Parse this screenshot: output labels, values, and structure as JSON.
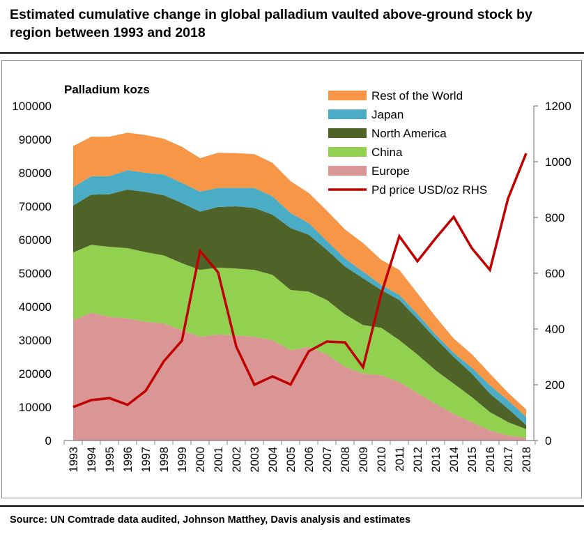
{
  "title": "Estimated cumulative change in global palladium vaulted above-ground stock by region between 1993 and 2018",
  "source": "Source: UN Comtrade data audited, Johnson Matthey, Davis analysis and estimates",
  "colors": {
    "rest_of_world": "#f79646",
    "japan": "#4bacc6",
    "north_america": "#4f6228",
    "china": "#92d050",
    "europe": "#d99694",
    "price": "#c00000"
  },
  "chart_data": {
    "type": "area",
    "title": "Palladium kozs",
    "ylabel": "Palladium kozs",
    "y2label": "Pd price USD/oz RHS",
    "ylim": [
      0,
      100000
    ],
    "y2lim": [
      0,
      1200
    ],
    "y_ticks": [
      "0",
      "10000",
      "20000",
      "30000",
      "40000",
      "50000",
      "60000",
      "70000",
      "80000",
      "90000",
      "100000"
    ],
    "y2_ticks": [
      "0",
      "200",
      "400",
      "600",
      "800",
      "1000",
      "1200"
    ],
    "categories": [
      "1993",
      "1994",
      "1995",
      "1996",
      "1997",
      "1998",
      "1999",
      "2000",
      "2001",
      "2002",
      "2003",
      "2004",
      "2005",
      "2006",
      "2007",
      "2008",
      "2009",
      "2010",
      "2011",
      "2012",
      "2013",
      "2014",
      "2015",
      "2016",
      "2017",
      "2018"
    ],
    "stacked_series": [
      {
        "key": "europe",
        "name": "Europe",
        "values": [
          36000,
          38200,
          37000,
          36500,
          35500,
          35000,
          33000,
          31000,
          31700,
          31400,
          31000,
          30000,
          27000,
          28000,
          25800,
          22000,
          20000,
          19500,
          17500,
          14200,
          11000,
          8000,
          5500,
          3000,
          1500,
          800
        ]
      },
      {
        "key": "china",
        "name": "China",
        "values": [
          20200,
          20300,
          20900,
          21000,
          20800,
          20300,
          20000,
          20000,
          20000,
          20000,
          20000,
          19500,
          18000,
          16500,
          16200,
          15700,
          14500,
          14200,
          12500,
          11500,
          10000,
          9000,
          7500,
          5500,
          4000,
          2600
        ]
      },
      {
        "key": "north_america",
        "name": "North America",
        "values": [
          14000,
          15000,
          15700,
          17500,
          18000,
          18000,
          18000,
          17400,
          18100,
          18600,
          18500,
          18000,
          18500,
          17000,
          15000,
          14300,
          14000,
          11300,
          12000,
          10600,
          9500,
          8000,
          7000,
          5500,
          4000,
          1200
        ]
      },
      {
        "key": "japan",
        "name": "Japan",
        "values": [
          5500,
          5500,
          5400,
          5800,
          5700,
          6200,
          6000,
          6000,
          5700,
          5500,
          6000,
          5500,
          4500,
          3500,
          2700,
          2400,
          2000,
          1500,
          1500,
          1500,
          1200,
          1200,
          1800,
          2500,
          2500,
          2500
        ]
      },
      {
        "key": "rest_of_world",
        "name": "Rest of the World",
        "values": [
          12300,
          11800,
          11800,
          11200,
          11300,
          10700,
          10800,
          10000,
          10500,
          10400,
          10100,
          10000,
          9500,
          9000,
          9000,
          8700,
          8500,
          7500,
          7500,
          6200,
          5300,
          4300,
          4000,
          3500,
          2300,
          2200
        ]
      }
    ],
    "line_series": {
      "key": "price",
      "name": "Pd price USD/oz RHS",
      "axis": "right",
      "values": [
        120,
        145,
        152,
        128,
        178,
        284,
        358,
        680,
        603,
        337,
        200,
        230,
        201,
        320,
        355,
        352,
        263,
        525,
        733,
        643,
        725,
        802,
        690,
        612,
        868,
        1030
      ]
    },
    "legend": [
      "Rest of the World",
      "Japan",
      "North America",
      "China",
      "Europe",
      "Pd price USD/oz RHS"
    ],
    "legend_position": "top-right"
  }
}
